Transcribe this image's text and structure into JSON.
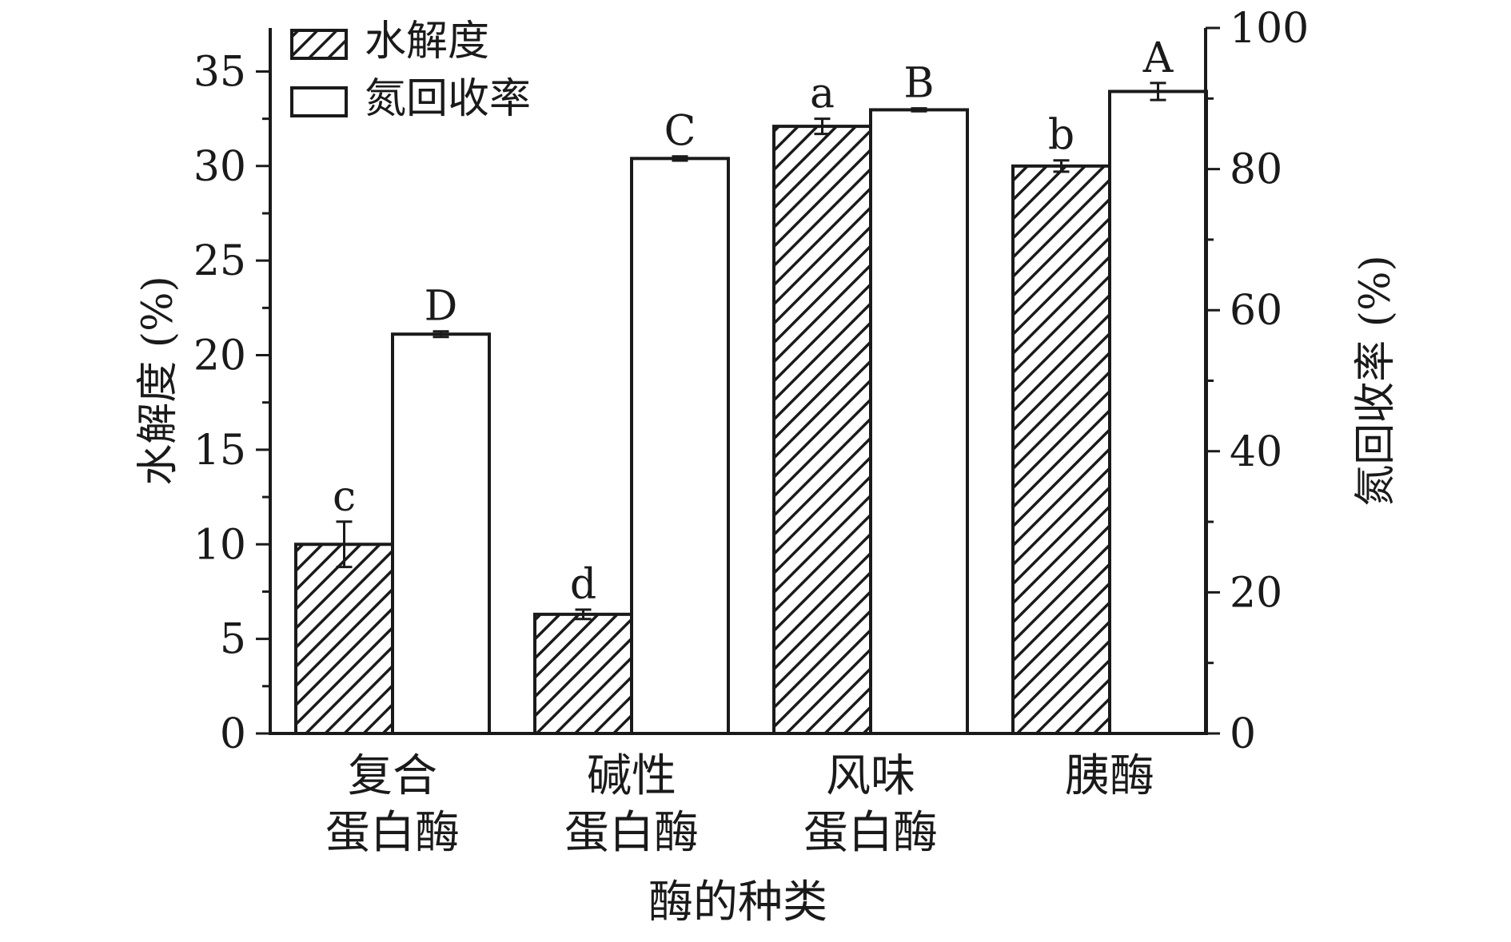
{
  "chart_data": {
    "type": "bar",
    "categories": [
      [
        "复合",
        "蛋白酶"
      ],
      [
        "碱性",
        "蛋白酶"
      ],
      [
        "风味",
        "蛋白酶"
      ],
      [
        "胰酶"
      ]
    ],
    "xlabel": "酶的种类",
    "series": [
      {
        "name": "水解度",
        "axis": "left",
        "pattern": "hatch",
        "values": [
          10.0,
          6.3,
          32.1,
          30.0
        ],
        "errors": [
          1.2,
          0.25,
          0.4,
          0.3
        ],
        "labels": [
          "c",
          "d",
          "a",
          "b"
        ]
      },
      {
        "name": "氮回收率",
        "axis": "right",
        "pattern": "open",
        "values": [
          56.6,
          81.5,
          88.4,
          91.0
        ],
        "errors": [
          0.4,
          0.3,
          0.2,
          1.2
        ],
        "labels": [
          "D",
          "C",
          "B",
          "A"
        ]
      }
    ],
    "y_left": {
      "label": "水解度 (%)",
      "lim": [
        0,
        37.3
      ],
      "ticks": [
        0,
        5,
        10,
        15,
        20,
        25,
        30,
        35
      ]
    },
    "y_right": {
      "label": "氮回收率 (%)",
      "lim": [
        0,
        100
      ],
      "ticks": [
        0,
        20,
        40,
        60,
        80,
        100
      ]
    },
    "legend": "top-left",
    "grid": false,
    "colors": {
      "ink": "#1a1a1a",
      "open_fill": "#ffffff"
    }
  }
}
